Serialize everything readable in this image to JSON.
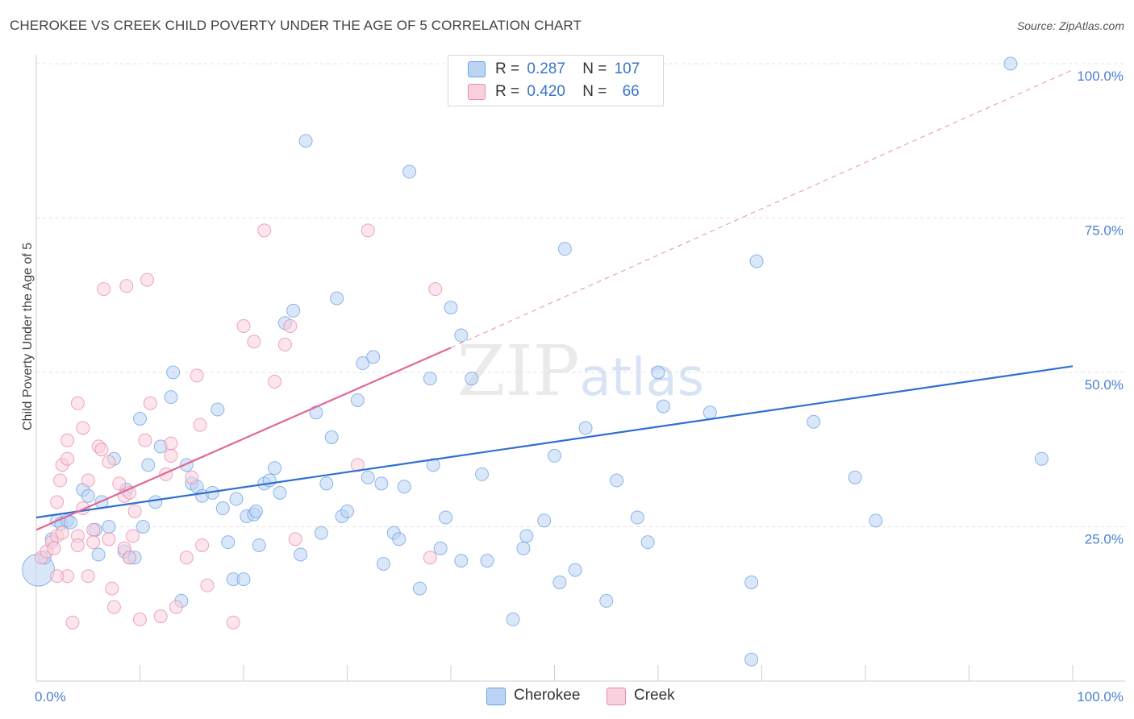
{
  "title": "CHEROKEE VS CREEK CHILD POVERTY UNDER THE AGE OF 5 CORRELATION CHART",
  "source": "Source: ZipAtlas.com",
  "watermark": "ZIPatlas",
  "legend": {
    "rows": [
      {
        "r_label": "R =",
        "r_value": "0.287",
        "n_label": "N =",
        "n_value": "107",
        "color": "#a9c8f0"
      },
      {
        "r_label": "R =",
        "r_value": "0.420",
        "n_label": "N =",
        "n_value": "66",
        "color": "#f6bccd"
      }
    ]
  },
  "bottom_legend": [
    {
      "label": "Cherokee",
      "color": "#a9c8f0"
    },
    {
      "label": "Creek",
      "color": "#f6bccd"
    }
  ],
  "chart_data": {
    "type": "scatter",
    "title": "CHEROKEE VS CREEK CHILD POVERTY UNDER THE AGE OF 5 CORRELATION CHART",
    "xlabel": "",
    "ylabel": "Child Poverty Under the Age of 5",
    "xlim": [
      0,
      100
    ],
    "ylim": [
      0,
      100
    ],
    "x_tick_labels": [
      "0.0%",
      "100.0%"
    ],
    "y_tick_labels": [
      "25.0%",
      "50.0%",
      "75.0%",
      "100.0%"
    ],
    "y_ticks": [
      25,
      50,
      75,
      100
    ],
    "grid": true,
    "legend_position": "top-center",
    "series": [
      {
        "name": "Cherokee",
        "color": "#6aa0e6",
        "fill": "#bcd4f3",
        "trend": {
          "x0": 0,
          "y0": 26.5,
          "x1": 100,
          "y1": 51
        },
        "points": [
          [
            0.2,
            18
          ],
          [
            0.8,
            20
          ],
          [
            1.5,
            23
          ],
          [
            2,
            26
          ],
          [
            2.4,
            25.5
          ],
          [
            3,
            26
          ],
          [
            3.3,
            25.7
          ],
          [
            4.5,
            31
          ],
          [
            5,
            30
          ],
          [
            5.7,
            24.5
          ],
          [
            6,
            20.5
          ],
          [
            6.3,
            29
          ],
          [
            7,
            25
          ],
          [
            7.5,
            36
          ],
          [
            8.5,
            21
          ],
          [
            8.7,
            31
          ],
          [
            9,
            20
          ],
          [
            9.5,
            20
          ],
          [
            10,
            42.5
          ],
          [
            10.3,
            25
          ],
          [
            10.8,
            35
          ],
          [
            11.5,
            29
          ],
          [
            12,
            38
          ],
          [
            13,
            46
          ],
          [
            13.2,
            50
          ],
          [
            14,
            13
          ],
          [
            14.5,
            35
          ],
          [
            15,
            32
          ],
          [
            15.5,
            31.5
          ],
          [
            16,
            30
          ],
          [
            17,
            30.5
          ],
          [
            17.5,
            44
          ],
          [
            18,
            28
          ],
          [
            18.5,
            22.5
          ],
          [
            19,
            16.5
          ],
          [
            19.3,
            29.5
          ],
          [
            20,
            16.5
          ],
          [
            20.3,
            26.7
          ],
          [
            21,
            27
          ],
          [
            21.2,
            27.5
          ],
          [
            21.5,
            22
          ],
          [
            22,
            32
          ],
          [
            22.5,
            32.5
          ],
          [
            23,
            34.5
          ],
          [
            23.5,
            30.5
          ],
          [
            24,
            58
          ],
          [
            24.8,
            60
          ],
          [
            25.5,
            20.5
          ],
          [
            26,
            87.5
          ],
          [
            27,
            43.5
          ],
          [
            27.5,
            24
          ],
          [
            28,
            32
          ],
          [
            28.5,
            39.5
          ],
          [
            29,
            62
          ],
          [
            29.5,
            26.7
          ],
          [
            30,
            27.5
          ],
          [
            31,
            45.5
          ],
          [
            31.5,
            51.5
          ],
          [
            32,
            33
          ],
          [
            32.5,
            52.5
          ],
          [
            33.3,
            32
          ],
          [
            33.5,
            19
          ],
          [
            34.5,
            24
          ],
          [
            35,
            23
          ],
          [
            35.5,
            31.5
          ],
          [
            36,
            82.5
          ],
          [
            37,
            15
          ],
          [
            38,
            49
          ],
          [
            38.3,
            35
          ],
          [
            39,
            21.5
          ],
          [
            39.5,
            26.5
          ],
          [
            40,
            60.5
          ],
          [
            41,
            56
          ],
          [
            41,
            19.5
          ],
          [
            42,
            49
          ],
          [
            43,
            33.5
          ],
          [
            43.5,
            19.5
          ],
          [
            46,
            10
          ],
          [
            47,
            21.5
          ],
          [
            47.3,
            23.5
          ],
          [
            49,
            26
          ],
          [
            50,
            36.5
          ],
          [
            50.5,
            16
          ],
          [
            51,
            70
          ],
          [
            52,
            18
          ],
          [
            53,
            41
          ],
          [
            55,
            13
          ],
          [
            56,
            32.5
          ],
          [
            58,
            26.5
          ],
          [
            59,
            22.5
          ],
          [
            60,
            50
          ],
          [
            60.5,
            44.5
          ],
          [
            65,
            43.5
          ],
          [
            69,
            16
          ],
          [
            69.5,
            68
          ],
          [
            69,
            3.5
          ],
          [
            75,
            42
          ],
          [
            79,
            33
          ],
          [
            81,
            26
          ],
          [
            94,
            100
          ],
          [
            97,
            36
          ],
          [
            59,
            100
          ]
        ]
      },
      {
        "name": "Creek",
        "color": "#e889a8",
        "fill": "#f9d0dd",
        "trend": {
          "x0": 0,
          "y0": 24.5,
          "x1": 40,
          "y1": 54
        },
        "trend_dashed": {
          "x0": 40,
          "y0": 54,
          "x1": 100,
          "y1": 99
        },
        "points": [
          [
            0.5,
            20
          ],
          [
            1,
            21
          ],
          [
            1.5,
            22.5
          ],
          [
            2,
            23.5
          ],
          [
            2.5,
            24
          ],
          [
            2,
            29
          ],
          [
            2.3,
            32.5
          ],
          [
            2.5,
            35
          ],
          [
            3,
            39
          ],
          [
            3,
            36
          ],
          [
            3,
            17
          ],
          [
            3.5,
            9.5
          ],
          [
            4,
            23.5
          ],
          [
            4,
            22
          ],
          [
            4,
            45
          ],
          [
            4.5,
            28
          ],
          [
            4.5,
            41
          ],
          [
            5,
            32.5
          ],
          [
            5,
            17
          ],
          [
            5.5,
            24.5
          ],
          [
            5.5,
            22.5
          ],
          [
            6,
            38
          ],
          [
            6.3,
            37.5
          ],
          [
            6.5,
            63.5
          ],
          [
            7,
            35.5
          ],
          [
            7,
            23
          ],
          [
            7.3,
            15
          ],
          [
            7.5,
            12
          ],
          [
            8,
            32
          ],
          [
            8.5,
            21.5
          ],
          [
            8.5,
            30
          ],
          [
            8.7,
            64
          ],
          [
            9,
            30.5
          ],
          [
            9,
            20
          ],
          [
            9.3,
            23.5
          ],
          [
            9.5,
            27.5
          ],
          [
            10,
            10
          ],
          [
            10.5,
            39
          ],
          [
            10.7,
            65
          ],
          [
            11,
            45
          ],
          [
            12,
            10.5
          ],
          [
            12.5,
            33.5
          ],
          [
            13,
            38.5
          ],
          [
            13,
            36.5
          ],
          [
            13.5,
            12
          ],
          [
            14.5,
            20
          ],
          [
            15,
            33
          ],
          [
            15.5,
            49.5
          ],
          [
            15.8,
            41.5
          ],
          [
            16,
            22
          ],
          [
            16.5,
            15.5
          ],
          [
            19,
            9.5
          ],
          [
            20,
            57.5
          ],
          [
            21,
            55
          ],
          [
            22,
            73
          ],
          [
            23,
            48.5
          ],
          [
            24,
            54.5
          ],
          [
            24.5,
            57.5
          ],
          [
            25,
            23
          ],
          [
            31,
            35
          ],
          [
            32,
            73
          ],
          [
            38,
            20
          ],
          [
            38.5,
            63.5
          ],
          [
            2,
            17
          ],
          [
            1.7,
            21.5
          ]
        ]
      }
    ]
  }
}
